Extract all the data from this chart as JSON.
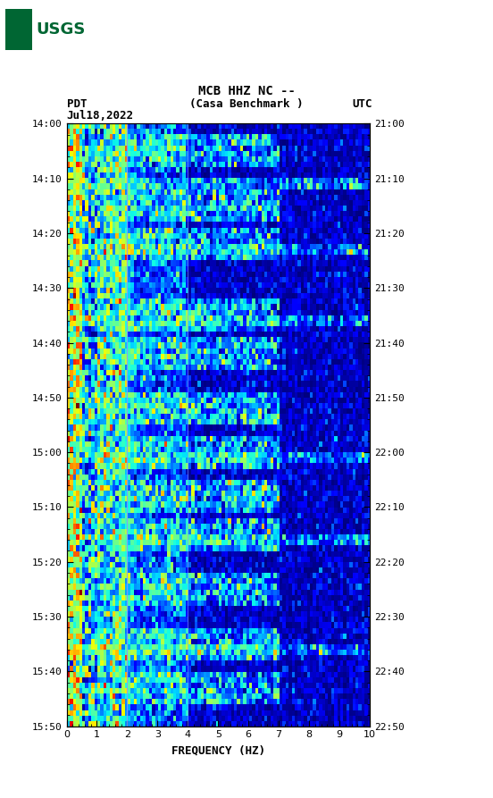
{
  "title_line1": "MCB HHZ NC --",
  "title_line2": "(Casa Benchmark )",
  "date_label": "Jul18,2022",
  "tz_left": "PDT",
  "tz_right": "UTC",
  "time_start_left": "14:00",
  "time_end_left": "15:50",
  "time_start_right": "21:00",
  "time_end_right": "22:50",
  "freq_min": 0,
  "freq_max": 10,
  "freq_label": "FREQUENCY (HZ)",
  "freq_ticks": [
    0,
    1,
    2,
    3,
    4,
    5,
    6,
    7,
    8,
    9,
    10
  ],
  "time_ticks_left": [
    "14:00",
    "14:10",
    "14:20",
    "14:30",
    "14:40",
    "14:50",
    "15:00",
    "15:10",
    "15:20",
    "15:30",
    "15:40",
    "15:50"
  ],
  "time_ticks_right": [
    "21:00",
    "21:10",
    "21:20",
    "21:30",
    "21:40",
    "21:50",
    "22:00",
    "22:10",
    "22:20",
    "22:30",
    "22:40",
    "22:50"
  ],
  "n_time_bins": 110,
  "n_freq_bins": 100,
  "bg_color": "#ffffff",
  "colormap": "jet",
  "usgs_logo_color": "#006633",
  "font_family": "monospace"
}
